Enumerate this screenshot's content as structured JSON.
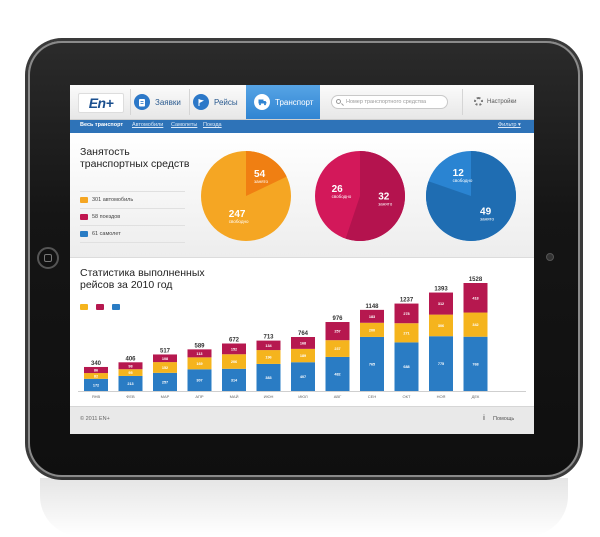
{
  "app": {
    "logo": "En+",
    "tabs": [
      {
        "label": "Заявки",
        "icon": "clipboard-icon",
        "active": false
      },
      {
        "label": "Рейсы",
        "icon": "flag-icon",
        "active": false
      },
      {
        "label": "Транспорт",
        "icon": "truck-icon",
        "active": true
      }
    ],
    "search_placeholder": "Номер транспортного средства",
    "settings_label": "Настройки"
  },
  "subnav": {
    "items": [
      "Весь транспорт",
      "Автомобили",
      "Самолеты",
      "Поезда"
    ],
    "filter_label": "Фильтр ▾"
  },
  "occupancy": {
    "title": "Занятость транспортных средств",
    "legend": [
      {
        "text": "301 автомобиль",
        "icon": "truck-icon",
        "color": "#f5a623"
      },
      {
        "text": "58 поездов",
        "icon": "train-icon",
        "color": "#c0164f"
      },
      {
        "text": "61 самолет",
        "icon": "plane-icon",
        "color": "#2a7cc4"
      }
    ],
    "pies": [
      {
        "busy": 54,
        "busy_label": "занято",
        "free": 247,
        "free_label": "свободно",
        "base": "#f5a623",
        "slice": "#f07f12"
      },
      {
        "busy": 32,
        "busy_label": "занято",
        "free": 26,
        "free_label": "свободно",
        "base": "#d3185a",
        "slice": "#b4134e"
      },
      {
        "busy": 49,
        "busy_label": "занято",
        "free": 12,
        "free_label": "свободно",
        "base": "#2a84d2",
        "slice": "#1f6db2"
      }
    ]
  },
  "stats": {
    "title": "Статистика выполненных рейсов за 2010 год"
  },
  "chart_data": {
    "type": "bar",
    "stacked": true,
    "categories": [
      "ЯНВ",
      "ФЕВ",
      "МАР",
      "АПР",
      "МАЙ",
      "ИЮН",
      "ИЮЛ",
      "АВГ",
      "СЕН",
      "ОКТ",
      "НОЯ",
      "ДЕК"
    ],
    "totals": [
      340,
      406,
      517,
      589,
      672,
      713,
      764,
      976,
      1148,
      1237,
      1393,
      1528
    ],
    "series": [
      {
        "values": [
          172,
          213,
          257,
          307,
          314,
          383,
          407,
          482,
          765,
          688,
          775,
          768
        ],
        "color": "#2a7cc4"
      },
      {
        "values": [
          82,
          95,
          152,
          169,
          206,
          196,
          189,
          237,
          200,
          271,
          306,
          342
        ],
        "color": "#f5b41d"
      },
      {
        "values": [
          86,
          98,
          108,
          113,
          152,
          134,
          168,
          257,
          183,
          278,
          312,
          418
        ],
        "color": "#b6184f"
      }
    ],
    "segment_labels": [
      [
        "172",
        "82",
        "86"
      ],
      [
        "213",
        "95",
        "98"
      ],
      [
        "257",
        "152",
        "108"
      ],
      [
        "307",
        "169",
        "113"
      ],
      [
        "314",
        "206",
        "152"
      ],
      [
        "383",
        "196",
        "134"
      ],
      [
        "407",
        "189",
        "168"
      ],
      [
        "482",
        "237",
        "257"
      ],
      [
        "765",
        "200",
        "183"
      ],
      [
        "688",
        "271",
        "278"
      ],
      [
        "775",
        "306",
        "312"
      ],
      [
        "768",
        "342",
        "418"
      ]
    ]
  },
  "footer": {
    "copyright": "© 2011 EN+",
    "help": "Помощь"
  }
}
